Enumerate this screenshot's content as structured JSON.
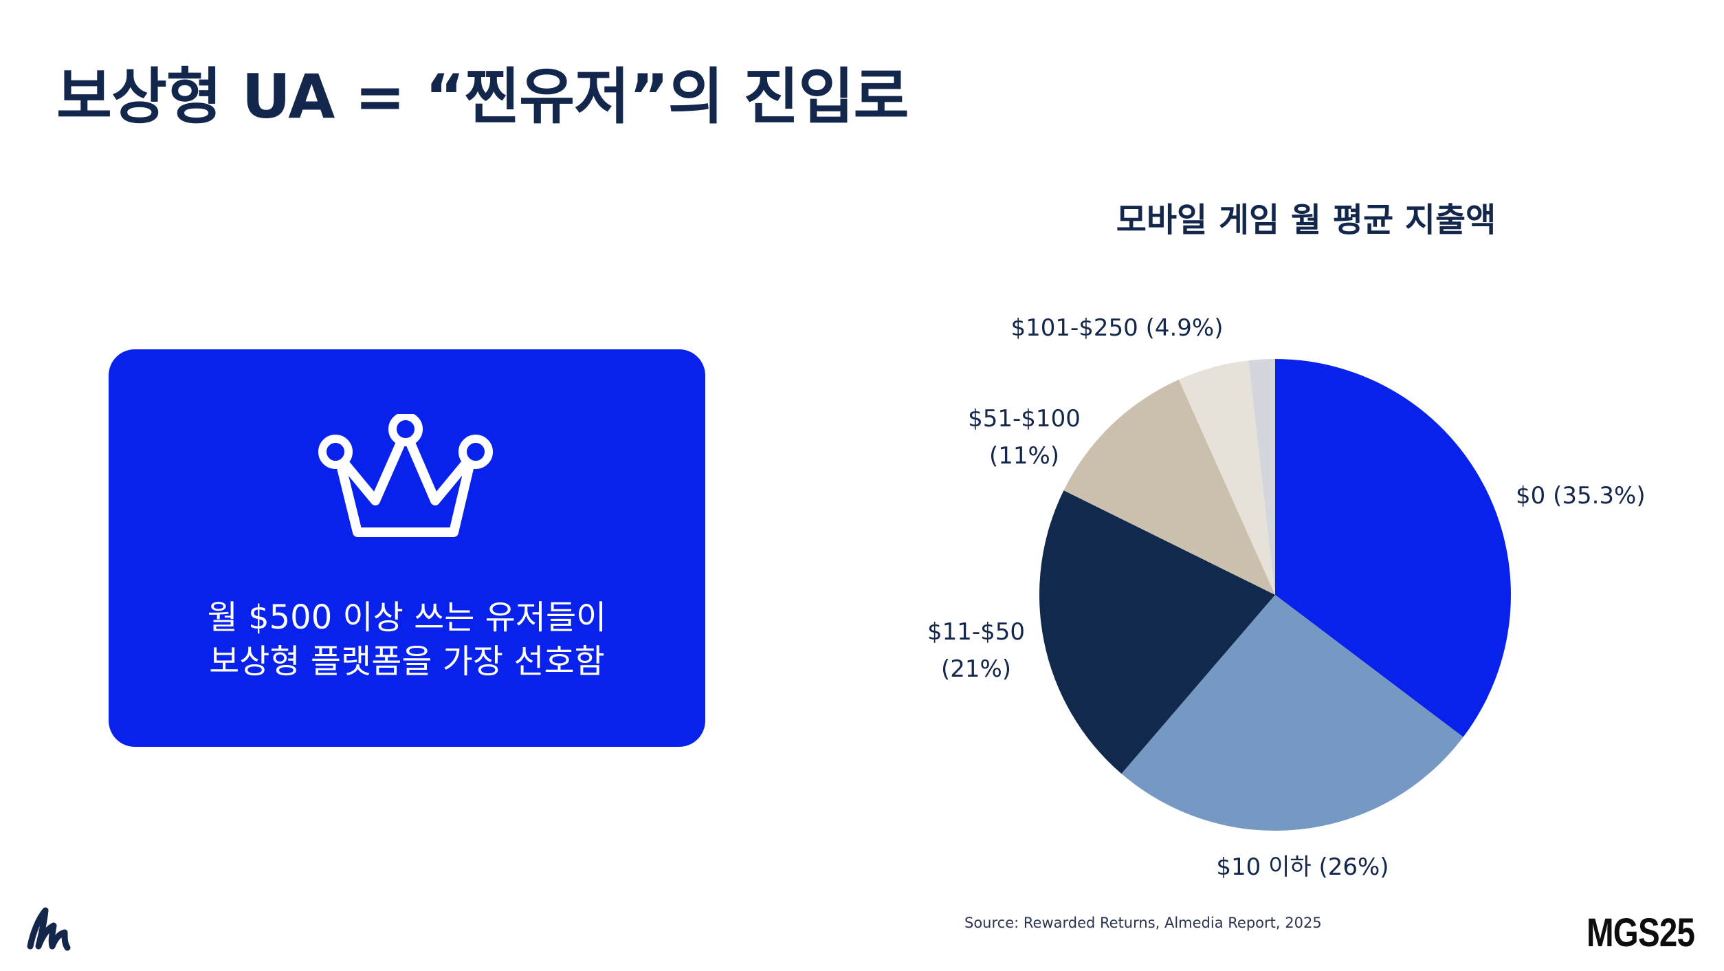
{
  "slide": {
    "title": "보상형 UA = “찐유저”의 진입로",
    "source": "Source: Rewarded Returns, Almedia Report, 2025",
    "brand_right": "MGS25",
    "logo_left_icon": "stylized-m-logo"
  },
  "callout": {
    "icon": "crown-icon",
    "line1": "월 $500 이상 쓰는 유저들이",
    "line2": "보상형 플랫폼을 가장 선호함",
    "bg_color": "#0822ec"
  },
  "chart_data": {
    "type": "pie",
    "title": "모바일 게임 월 평균 지출액",
    "start_angle_deg": 0,
    "direction": "clockwise",
    "slices": [
      {
        "label_lines": [
          "$0 (35.3%)"
        ],
        "value": 35.3,
        "color": "#0822ec"
      },
      {
        "label_lines": [
          "$10 이하 (26%)"
        ],
        "value": 26,
        "color": "#7599c2"
      },
      {
        "label_lines": [
          "$11-$50",
          "(21%)"
        ],
        "value": 21,
        "color": "#11294c"
      },
      {
        "label_lines": [
          "$51-$100",
          "(11%)"
        ],
        "value": 11,
        "color": "#cbbfad"
      },
      {
        "label_lines": [
          "$101-$250 (4.9%)"
        ],
        "value": 4.9,
        "color": "#e6e1d9"
      },
      {
        "label_lines": [],
        "value": 1.8,
        "color": "#d3d6dd"
      }
    ]
  }
}
